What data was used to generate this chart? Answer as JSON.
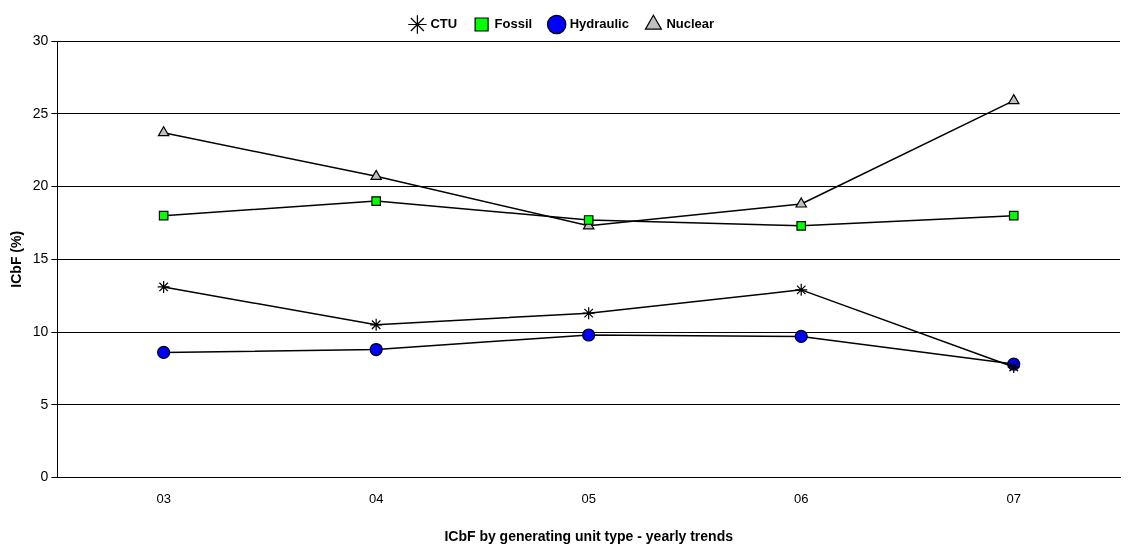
{
  "chart_data": {
    "type": "line",
    "xlabel": "ICbF by generating unit type - yearly trends",
    "ylabel": "ICbF (%)",
    "categories": [
      "03",
      "04",
      "05",
      "06",
      "07"
    ],
    "series": [
      {
        "name": "CTU",
        "color": "#000000",
        "marker": "cross",
        "values": [
          13.1,
          10.5,
          11.3,
          12.9,
          7.6
        ]
      },
      {
        "name": "Fossil",
        "color": "#00ff00",
        "marker": "square",
        "values": [
          18.0,
          19.0,
          17.7,
          17.3,
          18.0
        ]
      },
      {
        "name": "Hydraulic",
        "color": "#0000ff",
        "marker": "circle",
        "values": [
          8.6,
          8.8,
          9.8,
          9.7,
          7.8
        ]
      },
      {
        "name": "Nuclear",
        "color": "#c0c0c0",
        "marker": "triangle",
        "values": [
          23.7,
          20.7,
          17.3,
          18.8,
          25.9
        ]
      }
    ],
    "ylim": [
      0,
      30
    ],
    "yticks": [
      0,
      5,
      10,
      15,
      20,
      25,
      30
    ],
    "grid": "y",
    "legend": "top",
    "line_style": "solid"
  }
}
